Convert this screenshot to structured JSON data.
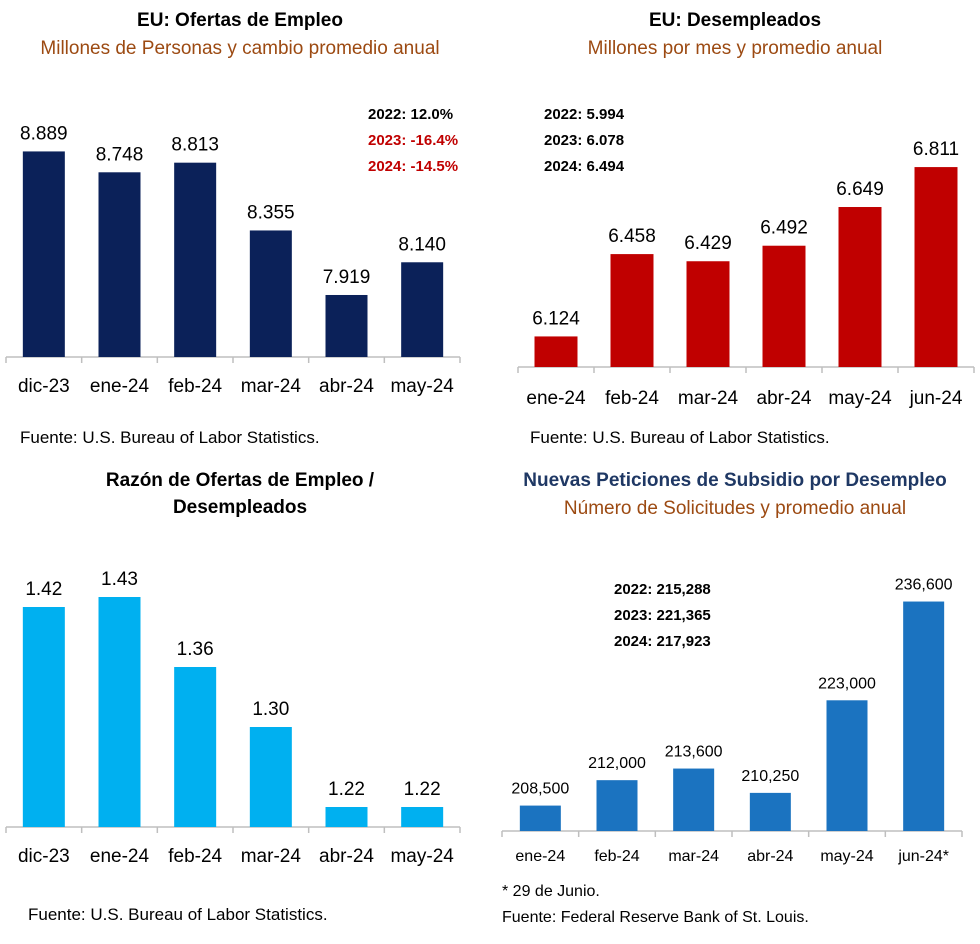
{
  "colors": {
    "navy": "#0b2159",
    "red": "#c00000",
    "lightblue": "#00b0f0",
    "blue": "#1b73c0",
    "brown": "#9c4a12",
    "darkblue": "#1f3864",
    "axis": "#bfbfbf"
  },
  "panels": [
    {
      "title": "EU: Ofertas de Empleo",
      "subtitle": "Millones de Personas y cambio promedio anual",
      "source": "Fuente:  U.S. Bureau of Labor Statistics.",
      "stats": [
        "2022: 12.0%",
        "2023: -16.4%",
        "2024: -14.5%"
      ]
    },
    {
      "title": "EU: Desempleados",
      "subtitle": "Millones por mes y promedio anual",
      "source": "Fuente:  U.S. Bureau of Labor Statistics.",
      "stats": [
        "2022: 5.994",
        "2023: 6.078",
        "2024: 6.494"
      ]
    },
    {
      "title_line1": "Razón de Ofertas de Empleo /",
      "title_line2": "Desempleados",
      "source": "Fuente:  U.S. Bureau of Labor Statistics."
    },
    {
      "title": "Nuevas Peticiones de Subsidio por Desempleo",
      "subtitle": "Número de Solicitudes y promedio anual",
      "footnote": "* 29 de Junio.",
      "source": "Fuente: Federal Reserve Bank of St. Louis.",
      "stats": [
        "2022: 215,288",
        "2023: 221,365",
        "2024: 217,923"
      ]
    }
  ],
  "chart_data": [
    {
      "type": "bar",
      "title": "EU: Ofertas de Empleo",
      "subtitle": "Millones de Personas y cambio promedio anual",
      "categories": [
        "dic-23",
        "ene-24",
        "feb-24",
        "mar-24",
        "abr-24",
        "may-24"
      ],
      "values": [
        8.889,
        8.748,
        8.813,
        8.355,
        7.919,
        8.14
      ],
      "labels": [
        "8.889",
        "8.748",
        "8.813",
        "8.355",
        "7.919",
        "8.140"
      ],
      "ylim": [
        7.5,
        9.0
      ],
      "unit": "millones"
    },
    {
      "type": "bar",
      "title": "EU: Desempleados",
      "subtitle": "Millones por mes y promedio anual",
      "categories": [
        "ene-24",
        "feb-24",
        "mar-24",
        "abr-24",
        "may-24",
        "jun-24"
      ],
      "values": [
        6.124,
        6.458,
        6.429,
        6.492,
        6.649,
        6.811
      ],
      "labels": [
        "6.124",
        "6.458",
        "6.429",
        "6.492",
        "6.649",
        "6.811"
      ],
      "ylim": [
        6.0,
        6.86
      ],
      "unit": "millones"
    },
    {
      "type": "bar",
      "title": "Razón de Ofertas de Empleo / Desempleados",
      "categories": [
        "dic-23",
        "ene-24",
        "feb-24",
        "mar-24",
        "abr-24",
        "may-24"
      ],
      "values": [
        1.42,
        1.43,
        1.36,
        1.3,
        1.22,
        1.22
      ],
      "labels": [
        "1.42",
        "1.43",
        "1.36",
        "1.30",
        "1.22",
        "1.22"
      ],
      "ylim": [
        1.2,
        1.437
      ]
    },
    {
      "type": "bar",
      "title": "Nuevas Peticiones de Subsidio por Desempleo",
      "subtitle": "Número de Solicitudes y promedio anual",
      "categories": [
        "ene-24",
        "feb-24",
        "mar-24",
        "abr-24",
        "may-24",
        "jun-24*"
      ],
      "values": [
        208500,
        212000,
        213600,
        210250,
        223000,
        236600
      ],
      "labels": [
        "208,500",
        "212,000",
        "213,600",
        "210,250",
        "223,000",
        "236,600"
      ],
      "ylim": [
        205000,
        237500
      ]
    }
  ]
}
